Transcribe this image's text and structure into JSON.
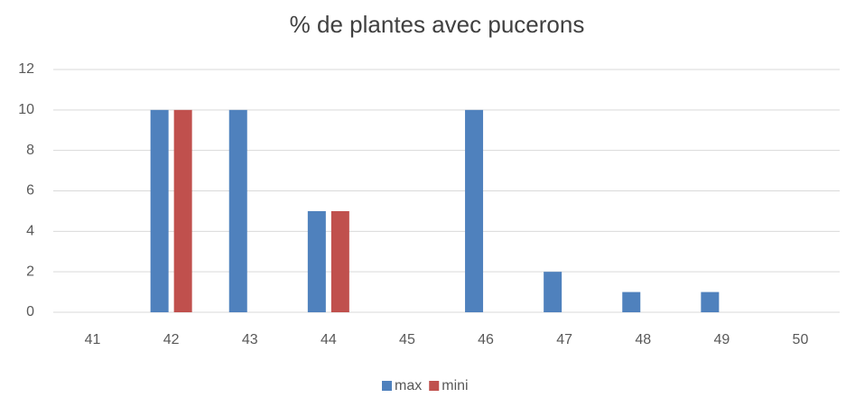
{
  "chart_data": {
    "type": "bar",
    "title": "% de plantes avec pucerons",
    "categories": [
      "41",
      "42",
      "43",
      "44",
      "45",
      "46",
      "47",
      "48",
      "49",
      "50"
    ],
    "series": [
      {
        "name": "max",
        "color": "#4f81bd",
        "values": [
          0,
          10,
          10,
          5,
          0,
          10,
          2,
          1,
          1,
          0
        ]
      },
      {
        "name": "mini",
        "color": "#c0504d",
        "values": [
          0,
          10,
          0,
          5,
          0,
          0,
          0,
          0,
          0,
          0
        ]
      }
    ],
    "ylim": [
      0,
      12
    ],
    "yticks": [
      0,
      2,
      4,
      6,
      8,
      10,
      12
    ],
    "grid": true,
    "legend": "bottom"
  }
}
